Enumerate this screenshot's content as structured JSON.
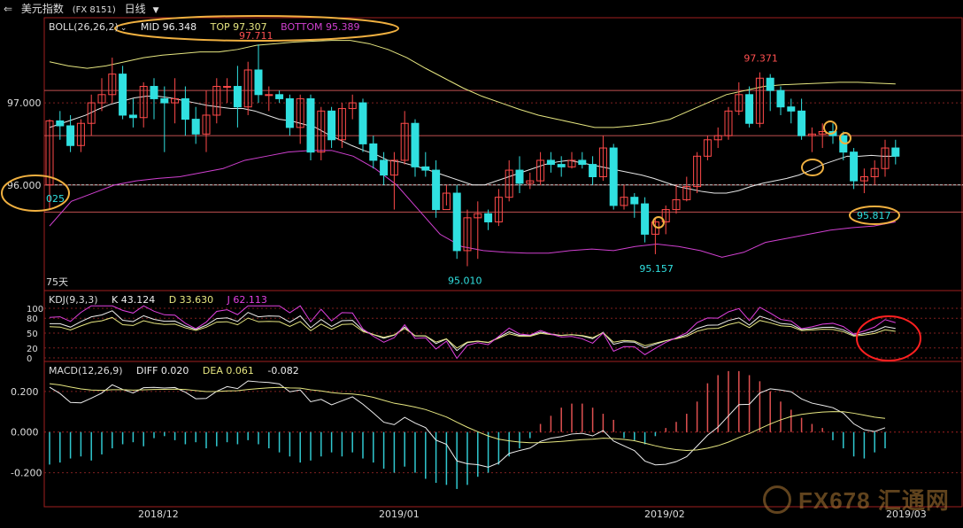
{
  "header": {
    "back_icon": "back-arrow-icon",
    "instrument": "美元指数",
    "code": "(FX 8151)",
    "period": "日线"
  },
  "boll": {
    "label": "BOLL(26,26,2)",
    "mid": "MID 96.348",
    "top": "TOP 97.307",
    "bottom": "BOTTOM 95.389"
  },
  "kdj": {
    "label": "KDJ(9,3,3)",
    "k": "K 43.124",
    "d": "D 33.630",
    "j": "J 62.113"
  },
  "macd": {
    "label": "MACD(12,26,9)",
    "diff": "DIFF 0.020",
    "dea": "DEA 0.061",
    "macd": "-0.082"
  },
  "annotations": {
    "high_left": "97.711",
    "high_right": "97.371",
    "low_left": "95.010",
    "low_mid": "95.157",
    "low_right": "95.817",
    "left_value": "025",
    "bars_label": "75天"
  },
  "colors": {
    "up": "#ff4a4a",
    "down": "#30e0e0",
    "mid": "#e6e6e6",
    "upper": "#e6e680",
    "lower": "#d040d0",
    "annot_circle": "#f0b040",
    "kdj_circle": "#ff2020",
    "macd_up": "#e05050",
    "macd_down": "#30c8d0"
  },
  "chart_data": [
    {
      "type": "candlestick",
      "title": "美元指数 日线",
      "x_labels": [
        "2018/12",
        "2019/01",
        "2019/02",
        "2019/03"
      ],
      "y_ticks": [
        97.0,
        96.0
      ],
      "y_tick_labels": [
        "97.000",
        "96.000"
      ],
      "ylim": [
        94.8,
        97.95
      ],
      "candles": [
        [
          96.0,
          96.78,
          96.8,
          95.7
        ],
        [
          96.78,
          96.72,
          96.9,
          96.55
        ],
        [
          96.72,
          96.48,
          96.85,
          96.4
        ],
        [
          96.48,
          96.75,
          96.8,
          96.4
        ],
        [
          96.75,
          97.0,
          97.1,
          96.6
        ],
        [
          97.0,
          97.1,
          97.3,
          96.9
        ],
        [
          97.1,
          97.35,
          97.55,
          97.0
        ],
        [
          97.35,
          96.85,
          97.45,
          96.8
        ],
        [
          96.85,
          96.82,
          97.05,
          96.7
        ],
        [
          96.82,
          97.2,
          97.25,
          96.7
        ],
        [
          97.2,
          97.05,
          97.3,
          96.8
        ],
        [
          97.05,
          97.0,
          97.2,
          96.4
        ],
        [
          97.0,
          97.05,
          97.3,
          96.75
        ],
        [
          97.05,
          96.8,
          97.2,
          96.6
        ],
        [
          96.8,
          96.62,
          96.95,
          96.5
        ],
        [
          96.62,
          96.85,
          97.15,
          96.4
        ],
        [
          96.85,
          97.2,
          97.3,
          96.75
        ],
        [
          97.2,
          97.2,
          97.3,
          97.0
        ],
        [
          97.2,
          96.95,
          97.45,
          96.7
        ],
        [
          96.95,
          97.4,
          97.5,
          96.85
        ],
        [
          97.4,
          97.1,
          97.711,
          97.0
        ],
        [
          97.1,
          97.1,
          97.2,
          96.9
        ],
        [
          97.1,
          97.05,
          97.15,
          97.0
        ],
        [
          97.05,
          96.7,
          97.1,
          96.6
        ],
        [
          96.7,
          97.05,
          97.1,
          96.5
        ],
        [
          97.05,
          96.4,
          97.1,
          96.3
        ],
        [
          96.4,
          96.9,
          96.95,
          96.3
        ],
        [
          96.9,
          96.55,
          96.95,
          96.45
        ],
        [
          96.55,
          96.93,
          97.0,
          96.45
        ],
        [
          96.93,
          97.0,
          97.1,
          96.8
        ],
        [
          97.0,
          96.5,
          97.05,
          96.4
        ],
        [
          96.5,
          96.3,
          96.6,
          96.2
        ],
        [
          96.3,
          96.12,
          96.4,
          96.0
        ],
        [
          96.12,
          96.3,
          96.4,
          95.7
        ],
        [
          96.3,
          96.75,
          96.9,
          96.25
        ],
        [
          96.75,
          96.22,
          96.8,
          96.1
        ],
        [
          96.22,
          96.18,
          96.4,
          96.1
        ],
        [
          96.18,
          95.7,
          96.3,
          95.6
        ],
        [
          95.7,
          95.9,
          96.0,
          95.75
        ],
        [
          95.9,
          95.2,
          96.0,
          95.1
        ],
        [
          95.2,
          95.6,
          95.7,
          95.01
        ],
        [
          95.6,
          95.65,
          95.8,
          95.1
        ],
        [
          95.65,
          95.55,
          95.7,
          95.45
        ],
        [
          95.55,
          95.85,
          95.95,
          95.5
        ],
        [
          95.85,
          96.18,
          96.3,
          95.8
        ],
        [
          96.18,
          96.02,
          96.35,
          95.9
        ],
        [
          96.02,
          96.05,
          96.15,
          95.95
        ],
        [
          96.05,
          96.3,
          96.4,
          96.0
        ],
        [
          96.3,
          96.25,
          96.4,
          96.15
        ],
        [
          96.25,
          96.22,
          96.35,
          96.1
        ],
        [
          96.22,
          96.3,
          96.4,
          96.2
        ],
        [
          96.3,
          96.25,
          96.4,
          96.2
        ],
        [
          96.25,
          96.1,
          96.35,
          96.0
        ],
        [
          96.1,
          96.45,
          96.6,
          96.05
        ],
        [
          96.45,
          95.75,
          96.5,
          95.7
        ],
        [
          95.75,
          95.85,
          96.0,
          95.7
        ],
        [
          95.85,
          95.77,
          95.9,
          95.6
        ],
        [
          95.77,
          95.4,
          95.85,
          95.3
        ],
        [
          95.4,
          95.55,
          95.6,
          95.157
        ],
        [
          95.55,
          95.7,
          95.75,
          95.4
        ],
        [
          95.7,
          95.82,
          96.0,
          95.65
        ],
        [
          95.82,
          95.98,
          96.1,
          95.8
        ],
        [
          95.98,
          96.35,
          96.4,
          95.9
        ],
        [
          96.35,
          96.55,
          96.6,
          96.3
        ],
        [
          96.55,
          96.6,
          96.7,
          96.45
        ],
        [
          96.6,
          96.9,
          96.95,
          96.55
        ],
        [
          96.9,
          97.1,
          97.25,
          96.85
        ],
        [
          97.1,
          96.75,
          97.2,
          96.7
        ],
        [
          96.75,
          97.3,
          97.371,
          96.7
        ],
        [
          97.3,
          97.15,
          97.35,
          96.9
        ],
        [
          97.15,
          96.95,
          97.2,
          96.85
        ],
        [
          96.95,
          96.9,
          97.05,
          96.75
        ],
        [
          96.9,
          96.6,
          97.05,
          96.55
        ],
        [
          96.6,
          96.62,
          96.7,
          96.4
        ],
        [
          96.62,
          96.65,
          96.75,
          96.45
        ],
        [
          96.65,
          96.6,
          96.75,
          96.5
        ],
        [
          96.6,
          96.4,
          96.65,
          96.3
        ],
        [
          96.4,
          96.05,
          96.45,
          95.95
        ],
        [
          96.05,
          96.1,
          96.2,
          95.9
        ],
        [
          96.1,
          96.2,
          96.3,
          96.0
        ],
        [
          96.2,
          96.45,
          96.55,
          96.1
        ],
        [
          96.45,
          96.35,
          96.55,
          96.25
        ]
      ],
      "boll_mid": [
        96.7,
        96.75,
        96.8,
        96.85,
        96.92,
        96.98,
        97.02,
        97.06,
        97.08,
        97.08,
        97.06,
        97.03,
        97.0,
        96.97,
        96.95,
        96.93,
        96.93,
        96.9,
        96.85,
        96.8,
        96.78,
        96.74,
        96.7,
        96.62,
        96.55,
        96.48,
        96.42,
        96.37,
        96.3,
        96.28,
        96.24,
        96.2,
        96.15,
        96.1,
        96.05,
        96.0,
        96.0,
        96.05,
        96.1,
        96.15,
        96.2,
        96.25,
        96.28,
        96.3,
        96.27,
        96.24,
        96.21,
        96.18,
        96.15,
        96.12,
        96.08,
        96.03,
        95.98,
        95.95,
        95.92,
        95.9,
        95.9,
        95.93,
        95.98,
        96.02,
        96.05,
        96.08,
        96.12,
        96.18,
        96.25,
        96.3,
        96.35,
        96.35,
        96.36,
        96.35,
        96.35
      ],
      "boll_upper": [
        97.5,
        97.45,
        97.42,
        97.45,
        97.5,
        97.55,
        97.58,
        97.6,
        97.62,
        97.62,
        97.65,
        97.7,
        97.72,
        97.74,
        97.75,
        97.76,
        97.76,
        97.72,
        97.65,
        97.55,
        97.42,
        97.3,
        97.18,
        97.08,
        97.0,
        96.92,
        96.85,
        96.8,
        96.75,
        96.7,
        96.7,
        96.72,
        96.75,
        96.8,
        96.9,
        97.0,
        97.1,
        97.15,
        97.2,
        97.22,
        97.23,
        97.24,
        97.25,
        97.25,
        97.24,
        97.23
      ],
      "boll_lower": [
        95.5,
        95.8,
        95.9,
        96.0,
        96.05,
        96.08,
        96.1,
        96.15,
        96.2,
        96.3,
        96.35,
        96.4,
        96.42,
        96.42,
        96.35,
        96.2,
        96.0,
        95.7,
        95.4,
        95.25,
        95.2,
        95.18,
        95.17,
        95.17,
        95.2,
        95.22,
        95.2,
        95.25,
        95.28,
        95.25,
        95.2,
        95.12,
        95.18,
        95.3,
        95.35,
        95.4,
        95.45,
        95.48,
        95.5,
        95.55
      ]
    },
    {
      "type": "line",
      "title": "KDJ(9,3,3)",
      "y_ticks": [
        100,
        80,
        50,
        20,
        0
      ],
      "series": [
        {
          "name": "K",
          "value": "43.124"
        },
        {
          "name": "D",
          "value": "33.630"
        },
        {
          "name": "J",
          "value": "62.113"
        }
      ]
    },
    {
      "type": "bar",
      "title": "MACD(12,26,9)",
      "y_ticks": [
        0.2,
        0.0,
        -0.2
      ],
      "y_tick_labels": [
        "0.200",
        "0.000",
        "-0.200"
      ],
      "ylim": [
        -0.35,
        0.33
      ],
      "series": [
        {
          "name": "DIFF",
          "value": "0.020"
        },
        {
          "name": "DEA",
          "value": "0.061"
        },
        {
          "name": "MACD",
          "value": "-0.082"
        }
      ],
      "macd_bars": [
        -0.16,
        -0.15,
        -0.13,
        -0.12,
        -0.14,
        -0.11,
        -0.08,
        -0.06,
        -0.05,
        -0.07,
        -0.03,
        -0.02,
        -0.04,
        -0.06,
        -0.05,
        -0.08,
        -0.07,
        -0.05,
        -0.06,
        -0.04,
        -0.06,
        -0.08,
        -0.1,
        -0.12,
        -0.15,
        -0.14,
        -0.12,
        -0.1,
        -0.12,
        -0.1,
        -0.13,
        -0.15,
        -0.18,
        -0.2,
        -0.17,
        -0.2,
        -0.23,
        -0.25,
        -0.26,
        -0.28,
        -0.26,
        -0.22,
        -0.2,
        -0.16,
        -0.12,
        -0.08,
        -0.03,
        0.04,
        0.08,
        0.12,
        0.14,
        0.14,
        0.12,
        0.09,
        0.06,
        -0.03,
        -0.04,
        -0.06,
        -0.02,
        0.02,
        0.05,
        0.09,
        0.15,
        0.24,
        0.28,
        0.3,
        0.3,
        0.28,
        0.25,
        0.2,
        0.15,
        0.11,
        0.07,
        0.04,
        0.02,
        -0.04,
        -0.08,
        -0.12,
        -0.13,
        -0.1,
        -0.08
      ]
    }
  ]
}
